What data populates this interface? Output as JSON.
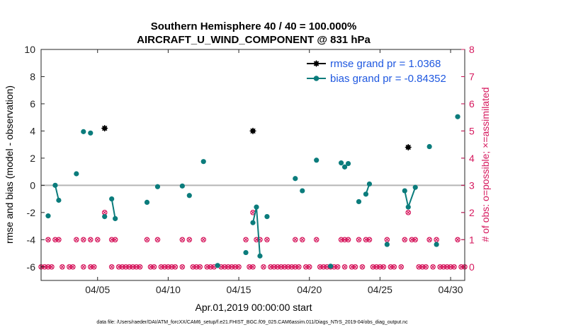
{
  "chart_data": {
    "type": "scatter",
    "title": "Southern Hemisphere 40 / 40 = 100.000%",
    "subtitle": "AIRCRAFT_U_WIND_COMPONENT @ 831 hPa",
    "xlabel": "Apr.01,2019 00:00:00 start",
    "ylabel": "rmse and bias (model - observation)",
    "y2label": "# of obs: o=possible; ×=assimilated",
    "footer": "data file: /Users/raeder/DAI/ATM_forcXX/CAM6_setup/f.e21.FHIST_BGC.f09_025.CAM6assim.011/Diags_NTrS_2019-04/obs_diag_output.nc",
    "xlim": [
      1.0,
      31.0
    ],
    "ylim": [
      -7,
      10
    ],
    "y2lim": [
      -0.5,
      8
    ],
    "x_ticks": [
      {
        "value": 5,
        "label": "04/05"
      },
      {
        "value": 10,
        "label": "04/10"
      },
      {
        "value": 15,
        "label": "04/15"
      },
      {
        "value": 20,
        "label": "04/20"
      },
      {
        "value": 25,
        "label": "04/25"
      },
      {
        "value": 30,
        "label": "04/30"
      }
    ],
    "y_ticks": [
      "-6",
      "-4",
      "-2",
      "0",
      "2",
      "4",
      "6",
      "8",
      "10"
    ],
    "y2_ticks": [
      "0",
      "1",
      "2",
      "3",
      "4",
      "5",
      "6",
      "7",
      "8"
    ],
    "colors": {
      "rmse": "#000000",
      "bias": "#0b7c7c",
      "obs": "#d6195e",
      "zero": "#b5b5b5",
      "legend_text": "#1f58e0"
    },
    "series": [
      {
        "name": "rmse grand pr = 1.0368",
        "marker": "asterisk",
        "segments": [
          [
            [
              5.5,
              4.2
            ]
          ],
          [
            [
              16.0,
              4.0
            ]
          ],
          [
            [
              27.0,
              2.8
            ]
          ]
        ]
      },
      {
        "name": "bias grand pr = -0.84352",
        "marker": "dot",
        "segments": [
          [
            [
              1.5,
              -2.25
            ]
          ],
          [
            [
              2.0,
              0.0
            ],
            [
              2.25,
              -1.1
            ]
          ],
          [
            [
              3.5,
              0.85
            ]
          ],
          [
            [
              4.0,
              3.95
            ]
          ],
          [
            [
              4.5,
              3.85
            ]
          ],
          [
            [
              5.5,
              -2.3
            ]
          ],
          [
            [
              6.0,
              -1.0
            ],
            [
              6.25,
              -2.45
            ]
          ],
          [
            [
              8.5,
              -1.25
            ]
          ],
          [
            [
              9.25,
              -0.1
            ]
          ],
          [
            [
              11.0,
              -0.05
            ]
          ],
          [
            [
              11.5,
              -0.75
            ]
          ],
          [
            [
              12.5,
              1.75
            ]
          ],
          [
            [
              13.5,
              -5.9
            ]
          ],
          [
            [
              15.5,
              -4.95
            ]
          ],
          [
            [
              16.0,
              -2.75
            ],
            [
              16.25,
              -1.6
            ],
            [
              16.5,
              -5.2
            ]
          ],
          [
            [
              17.0,
              -2.3
            ]
          ],
          [
            [
              19.0,
              0.5
            ]
          ],
          [
            [
              19.5,
              -0.4
            ]
          ],
          [
            [
              20.5,
              1.85
            ]
          ],
          [
            [
              21.5,
              -5.95
            ]
          ],
          [
            [
              22.25,
              1.65
            ]
          ],
          [
            [
              22.5,
              1.35
            ]
          ],
          [
            [
              22.75,
              1.6
            ]
          ],
          [
            [
              23.5,
              -1.2
            ]
          ],
          [
            [
              24.0,
              -0.65
            ],
            [
              24.25,
              0.1
            ]
          ],
          [
            [
              25.5,
              -4.35
            ]
          ],
          [
            [
              26.75,
              -0.4
            ],
            [
              27.0,
              -1.6
            ],
            [
              27.5,
              -0.15
            ]
          ],
          [
            [
              28.5,
              2.85
            ]
          ],
          [
            [
              29.0,
              -4.35
            ]
          ],
          [
            [
              30.5,
              5.05
            ]
          ]
        ]
      }
    ],
    "obs_possible": [
      [
        1.0,
        0
      ],
      [
        1.25,
        0
      ],
      [
        1.5,
        0
      ],
      [
        1.75,
        0
      ],
      [
        1.5,
        1
      ],
      [
        2.0,
        1
      ],
      [
        2.25,
        1
      ],
      [
        2.5,
        0
      ],
      [
        3.0,
        0
      ],
      [
        3.25,
        0
      ],
      [
        3.5,
        1
      ],
      [
        4.0,
        0
      ],
      [
        4.0,
        1
      ],
      [
        4.5,
        0
      ],
      [
        4.5,
        1
      ],
      [
        4.75,
        0
      ],
      [
        5.0,
        1
      ],
      [
        5.5,
        2
      ],
      [
        6.0,
        0
      ],
      [
        6.0,
        1
      ],
      [
        6.25,
        1
      ],
      [
        6.5,
        0
      ],
      [
        6.75,
        0
      ],
      [
        7.0,
        0
      ],
      [
        7.25,
        0
      ],
      [
        7.5,
        0
      ],
      [
        7.75,
        0
      ],
      [
        8.0,
        0
      ],
      [
        8.5,
        1
      ],
      [
        8.75,
        0
      ],
      [
        9.0,
        0
      ],
      [
        9.25,
        1
      ],
      [
        9.5,
        0
      ],
      [
        9.75,
        0
      ],
      [
        10.0,
        0
      ],
      [
        10.25,
        0
      ],
      [
        10.5,
        0
      ],
      [
        11.0,
        1
      ],
      [
        11.0,
        0
      ],
      [
        11.5,
        1
      ],
      [
        11.75,
        0
      ],
      [
        12.0,
        0
      ],
      [
        12.25,
        0
      ],
      [
        12.5,
        1
      ],
      [
        12.75,
        0
      ],
      [
        13.0,
        0
      ],
      [
        13.25,
        0
      ],
      [
        13.75,
        0
      ],
      [
        14.0,
        0
      ],
      [
        14.25,
        0
      ],
      [
        14.5,
        0
      ],
      [
        14.75,
        0
      ],
      [
        15.0,
        0
      ],
      [
        15.5,
        1
      ],
      [
        15.75,
        0
      ],
      [
        16.0,
        0
      ],
      [
        16.0,
        2
      ],
      [
        16.25,
        1
      ],
      [
        16.5,
        1
      ],
      [
        16.75,
        0
      ],
      [
        17.0,
        1
      ],
      [
        17.25,
        0
      ],
      [
        17.5,
        0
      ],
      [
        17.75,
        0
      ],
      [
        18.0,
        0
      ],
      [
        18.25,
        0
      ],
      [
        18.5,
        0
      ],
      [
        18.75,
        0
      ],
      [
        19.0,
        0
      ],
      [
        19.0,
        1
      ],
      [
        19.25,
        0
      ],
      [
        19.5,
        1
      ],
      [
        19.75,
        0
      ],
      [
        20.0,
        0
      ],
      [
        20.5,
        1
      ],
      [
        20.75,
        0
      ],
      [
        21.0,
        0
      ],
      [
        21.25,
        0
      ],
      [
        21.5,
        0
      ],
      [
        21.75,
        0
      ],
      [
        22.0,
        0
      ],
      [
        22.25,
        1
      ],
      [
        22.5,
        1
      ],
      [
        22.75,
        1
      ],
      [
        22.5,
        0
      ],
      [
        23.0,
        0
      ],
      [
        23.25,
        0
      ],
      [
        23.5,
        1
      ],
      [
        24.0,
        1
      ],
      [
        24.25,
        1
      ],
      [
        23.75,
        0
      ],
      [
        24.5,
        0
      ],
      [
        24.75,
        0
      ],
      [
        25.0,
        0
      ],
      [
        25.25,
        0
      ],
      [
        25.5,
        1
      ],
      [
        25.75,
        0
      ],
      [
        26.0,
        0
      ],
      [
        26.5,
        0
      ],
      [
        26.75,
        1
      ],
      [
        27.0,
        2
      ],
      [
        27.25,
        1
      ],
      [
        27.5,
        1
      ],
      [
        27.75,
        0
      ],
      [
        28.0,
        0
      ],
      [
        28.25,
        0
      ],
      [
        28.5,
        1
      ],
      [
        28.75,
        0
      ],
      [
        29.0,
        1
      ],
      [
        29.25,
        0
      ],
      [
        29.5,
        0
      ],
      [
        29.75,
        0
      ],
      [
        30.0,
        0
      ],
      [
        30.25,
        0
      ],
      [
        30.5,
        1
      ],
      [
        30.75,
        0
      ],
      [
        31.0,
        0
      ]
    ]
  }
}
